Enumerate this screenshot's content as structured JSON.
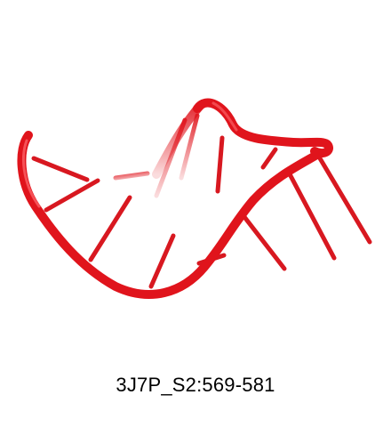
{
  "figure": {
    "label": "3J7P_S2:569-581",
    "molecule_color": "#e0141c",
    "background_color": "#ffffff"
  }
}
